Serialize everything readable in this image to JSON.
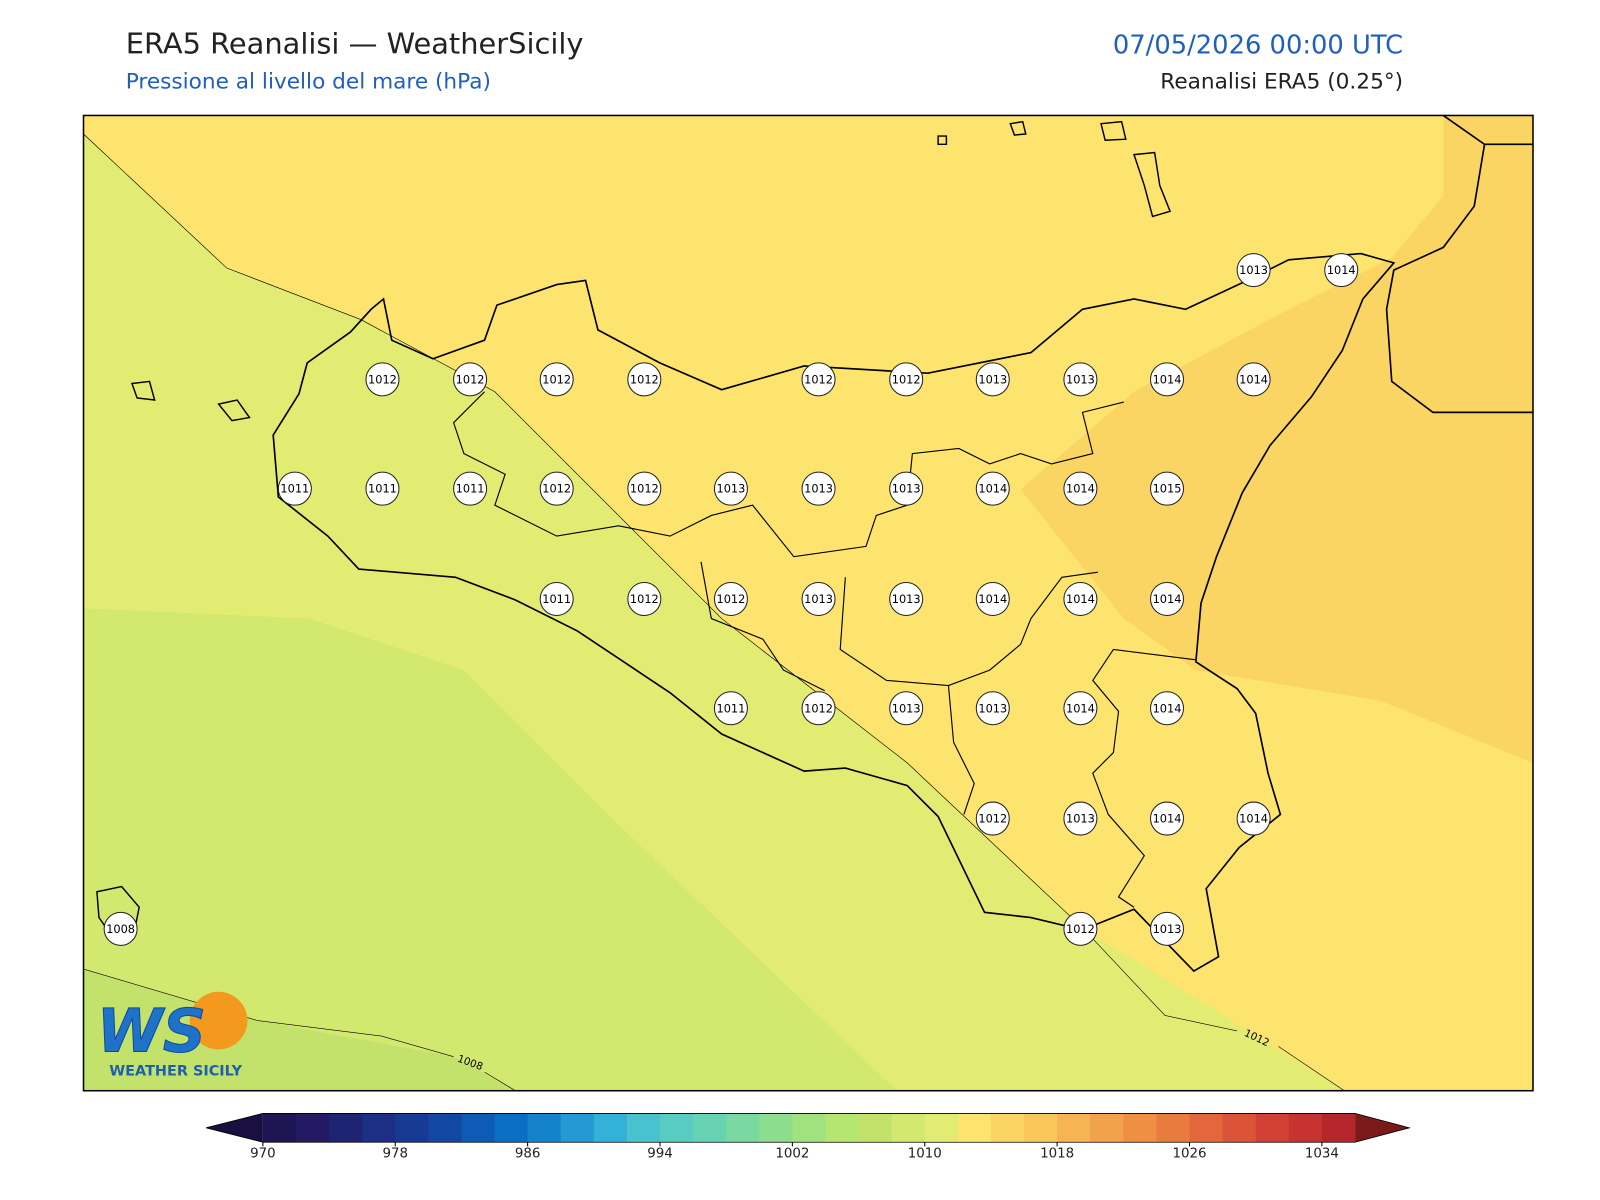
{
  "header": {
    "title": "ERA5 Reanalisi — WeatherSicily",
    "subtitle": "Pressione al livello del mare (hPa)",
    "datetime": "07/05/2026 00:00 UTC",
    "source": "Reanalisi ERA5 (0.25°)"
  },
  "map": {
    "stations": [
      1013,
      1014,
      1012,
      1012,
      1012,
      1012,
      1012,
      1012,
      1013,
      1013,
      1014,
      1014,
      1011,
      1011,
      1011,
      1012,
      1012,
      1013,
      1013,
      1013,
      1014,
      1014,
      1015,
      1011,
      1012,
      1012,
      1013,
      1013,
      1014,
      1014,
      1014,
      1011,
      1012,
      1013,
      1013,
      1014,
      1014,
      1012,
      1013,
      1014,
      1014,
      1008,
      1012,
      1013
    ],
    "contour_labels": [
      "1008",
      "1012"
    ]
  },
  "colorbar": {
    "lim": [
      970,
      1036
    ],
    "ticks": [
      970,
      978,
      986,
      994,
      1002,
      1010,
      1018,
      1026,
      1034
    ],
    "colors": [
      "#1e1555",
      "#221a63",
      "#1f2472",
      "#1c2f85",
      "#173a94",
      "#1248a4",
      "#0d5bb4",
      "#0a6fc4",
      "#1583cc",
      "#239ad4",
      "#34b1d6",
      "#48c2cf",
      "#58cbc2",
      "#68d3b2",
      "#78d9a1",
      "#8cde8e",
      "#9fe27e",
      "#b5e672",
      "#c3e26b",
      "#d3e86e",
      "#e3ec72",
      "#fce46e",
      "#fad564",
      "#f9c75a",
      "#f6b552",
      "#f2a24b",
      "#ee8f44",
      "#e97b3e",
      "#e3673a",
      "#dc5437",
      "#d24234",
      "#c73331",
      "#b4262b"
    ],
    "under_color": "#1a1040",
    "over_color": "#7a1a1a"
  },
  "logo": {
    "mark": "WS",
    "text": "WEATHER SICILY"
  }
}
